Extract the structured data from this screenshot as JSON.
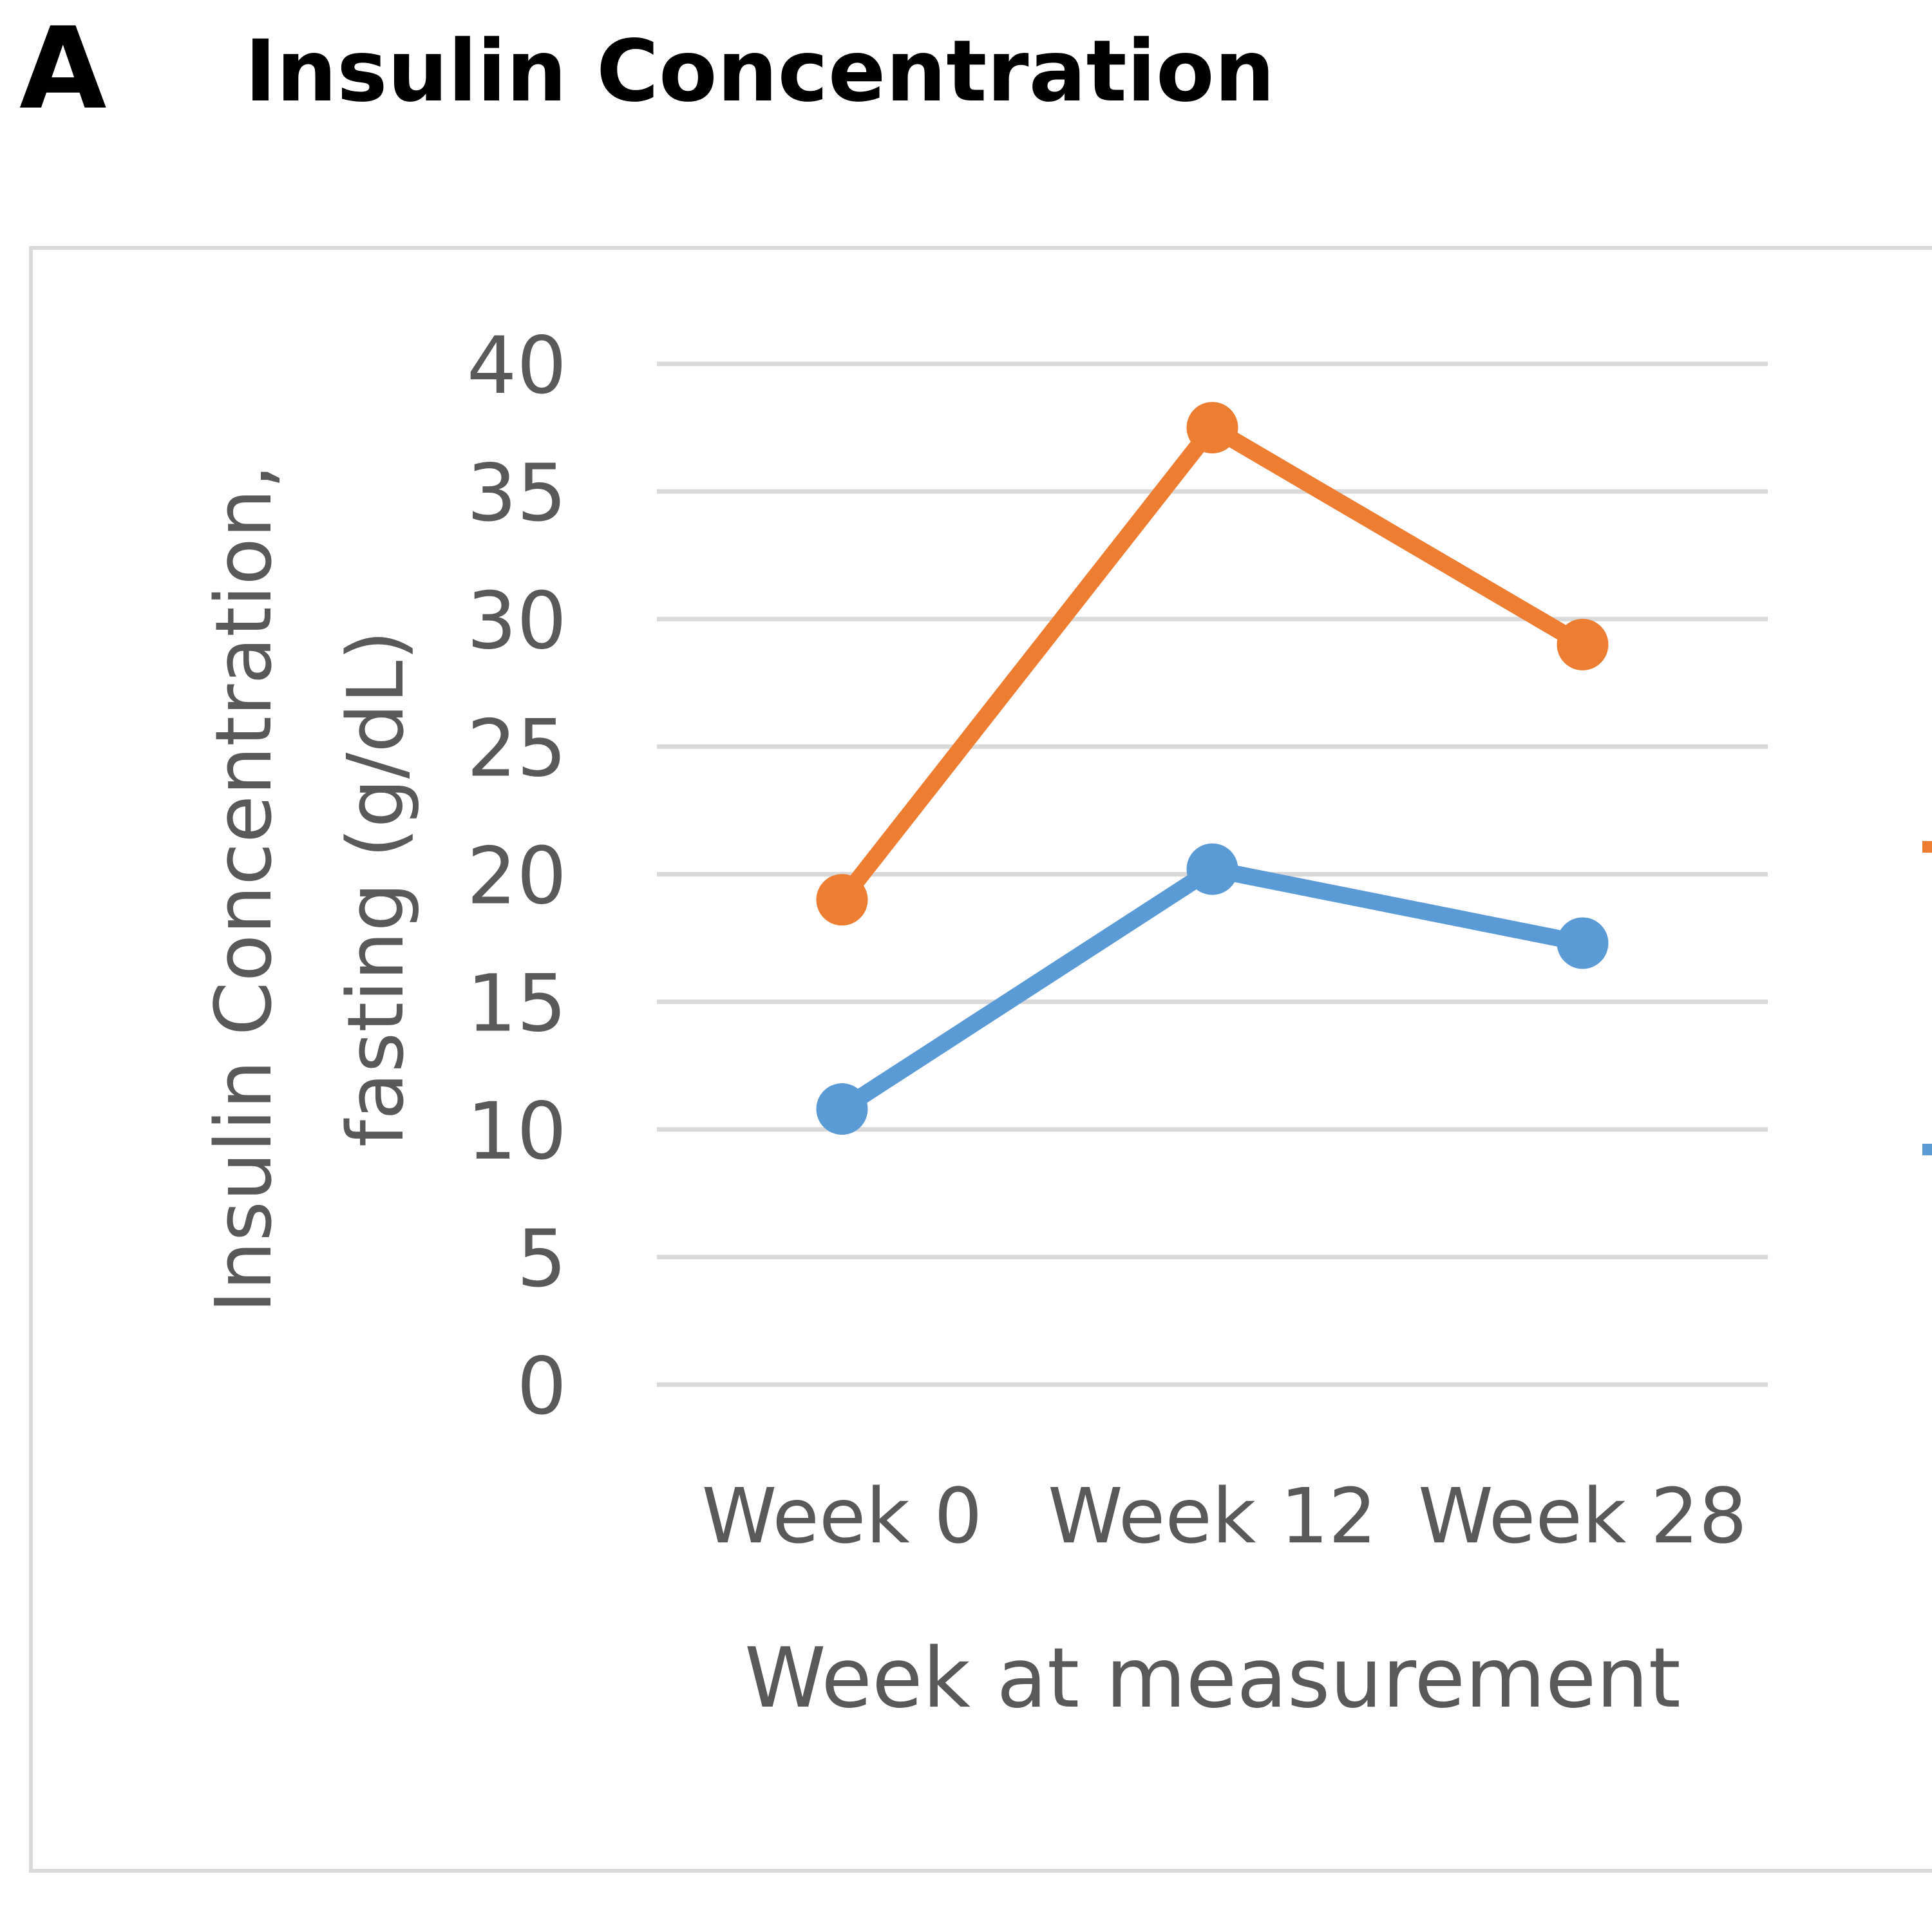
{
  "figure": {
    "panel_letter": "A",
    "title": "Insulin Concentration"
  },
  "chart_data": {
    "type": "line",
    "categories": [
      "Week 0",
      "Week 12",
      "Week 28"
    ],
    "series": [
      {
        "name": "",
        "color": "#ED7D31",
        "values": [
          19,
          37.5,
          29
        ]
      },
      {
        "name": "",
        "color": "#5B9BD5",
        "values": [
          10.8,
          20.2,
          17.3
        ]
      }
    ],
    "title": "",
    "xlabel": "Week at measurement",
    "ylabel_lines": [
      "Insulin Concentration,",
      "fasting (g/dL)"
    ],
    "ylim": [
      0,
      40
    ],
    "yticks": [
      0,
      5,
      10,
      15,
      20,
      25,
      30,
      35,
      40
    ],
    "grid": true,
    "legend": "right (cropped)"
  }
}
